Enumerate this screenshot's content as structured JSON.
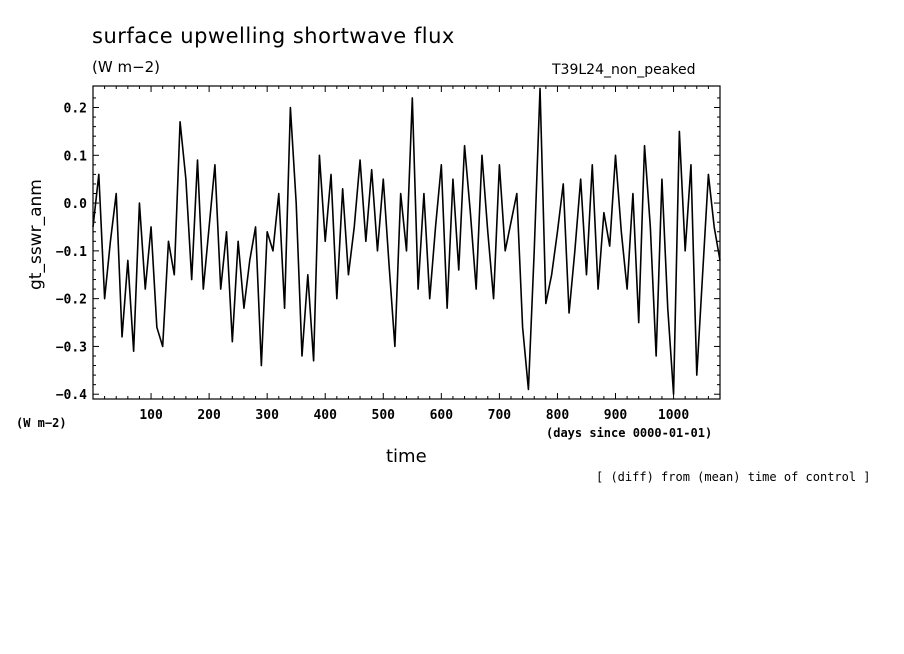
{
  "chart_data": {
    "type": "line",
    "title": "surface upwelling shortwave flux",
    "units": "(W m−2)",
    "run_label": "T39L24_non_peaked",
    "ylabel": "gt_sswr_anm",
    "y_units": "(W m−2)",
    "xlabel": "time",
    "x_units": "(days since 0000-01-01)",
    "note": "[ (diff) from (mean) time of control ]",
    "xlim": [
      0,
      1080
    ],
    "ylim": [
      -0.41,
      0.245
    ],
    "x_ticks": [
      100,
      200,
      300,
      400,
      500,
      600,
      700,
      800,
      900,
      1000
    ],
    "y_ticks": [
      0.2,
      0.1,
      0.0,
      -0.1,
      -0.2,
      -0.3,
      -0.4
    ],
    "y_tick_labels": [
      "0.2",
      "0.1",
      "0.0",
      "−0.1",
      "−0.2",
      "−0.3",
      "−0.4"
    ],
    "grid": false,
    "line_color": "#000000",
    "series": [
      {
        "x": [
          0,
          10,
          20,
          30,
          40,
          50,
          60,
          70,
          80,
          90,
          100,
          110,
          120,
          130,
          140,
          150,
          160,
          170,
          180,
          190,
          200,
          210,
          220,
          230,
          240,
          250,
          260,
          270,
          280,
          290,
          300,
          310,
          320,
          330,
          340,
          350,
          360,
          370,
          380,
          390,
          400,
          410,
          420,
          430,
          440,
          450,
          460,
          470,
          480,
          490,
          500,
          510,
          520,
          530,
          540,
          550,
          560,
          570,
          580,
          590,
          600,
          610,
          620,
          630,
          640,
          650,
          660,
          670,
          680,
          690,
          700,
          710,
          720,
          730,
          740,
          750,
          760,
          770,
          780,
          790,
          800,
          810,
          820,
          830,
          840,
          850,
          860,
          870,
          880,
          890,
          900,
          910,
          920,
          930,
          940,
          950,
          960,
          970,
          980,
          990,
          1000,
          1010,
          1020,
          1030,
          1040,
          1050,
          1060,
          1070,
          1080
        ],
        "values": [
          -0.05,
          0.06,
          -0.2,
          -0.08,
          0.02,
          -0.28,
          -0.12,
          -0.31,
          0.0,
          -0.18,
          -0.05,
          -0.26,
          -0.3,
          -0.08,
          -0.15,
          0.17,
          0.05,
          -0.16,
          0.09,
          -0.18,
          -0.05,
          0.08,
          -0.18,
          -0.06,
          -0.29,
          -0.08,
          -0.22,
          -0.12,
          -0.05,
          -0.34,
          -0.06,
          -0.1,
          0.02,
          -0.22,
          0.2,
          0.0,
          -0.32,
          -0.15,
          -0.33,
          0.1,
          -0.08,
          0.06,
          -0.2,
          0.03,
          -0.15,
          -0.05,
          0.09,
          -0.08,
          0.07,
          -0.1,
          0.05,
          -0.13,
          -0.3,
          0.02,
          -0.1,
          0.22,
          -0.18,
          0.02,
          -0.2,
          -0.05,
          0.08,
          -0.22,
          0.05,
          -0.14,
          0.12,
          -0.02,
          -0.18,
          0.1,
          -0.06,
          -0.2,
          0.08,
          -0.1,
          -0.04,
          0.02,
          -0.26,
          -0.39,
          -0.1,
          0.24,
          -0.21,
          -0.15,
          -0.06,
          0.04,
          -0.23,
          -0.1,
          0.05,
          -0.15,
          0.08,
          -0.18,
          -0.02,
          -0.09,
          0.1,
          -0.06,
          -0.18,
          0.02,
          -0.25,
          0.12,
          -0.05,
          -0.32,
          0.05,
          -0.22,
          -0.4,
          0.15,
          -0.1,
          0.08,
          -0.36,
          -0.15,
          0.06,
          -0.05,
          -0.12
        ]
      }
    ]
  }
}
